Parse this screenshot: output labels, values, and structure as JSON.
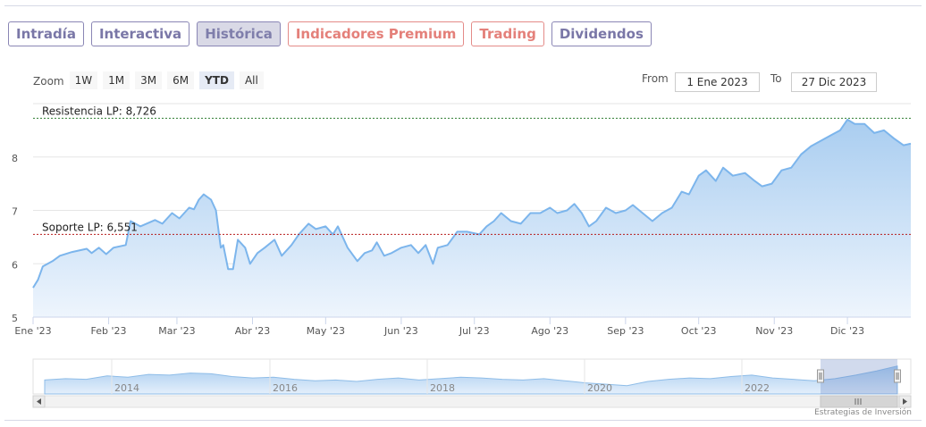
{
  "tabs": [
    {
      "label": "Intradía",
      "style": "normal"
    },
    {
      "label": "Interactiva",
      "style": "normal"
    },
    {
      "label": "Histórica",
      "style": "active"
    },
    {
      "label": "Indicadores Premium",
      "style": "premium"
    },
    {
      "label": "Trading",
      "style": "premium"
    },
    {
      "label": "Dividendos",
      "style": "normal"
    }
  ],
  "zoom": {
    "label": "Zoom",
    "buttons": [
      "1W",
      "1M",
      "3M",
      "6M",
      "YTD",
      "All"
    ],
    "selected": "YTD"
  },
  "range": {
    "from_label": "From",
    "from_value": "1 Ene 2023",
    "to_label": "To",
    "to_value": "27 Dic 2023"
  },
  "credit": "Estrategias de Inversión",
  "colors": {
    "line": "#7cb5ec",
    "fill_top": "#a9cdf0",
    "fill_bottom": "#eef5fd",
    "resistance": "#2e7d32",
    "support": "#b71c1c"
  },
  "chart_data": {
    "type": "area",
    "x_start": "2023-01-01",
    "x_end": "2023-12-27",
    "ylim": [
      5,
      9
    ],
    "y_ticks": [
      5,
      6,
      7,
      8
    ],
    "x_ticks": [
      {
        "date": "2023-01-01",
        "label": "Ene '23"
      },
      {
        "date": "2023-02-01",
        "label": "Feb '23"
      },
      {
        "date": "2023-03-01",
        "label": "Mar '23"
      },
      {
        "date": "2023-04-01",
        "label": "Abr '23"
      },
      {
        "date": "2023-05-01",
        "label": "May '23"
      },
      {
        "date": "2023-06-01",
        "label": "Jun '23"
      },
      {
        "date": "2023-07-01",
        "label": "Jul '23"
      },
      {
        "date": "2023-08-01",
        "label": "Ago '23"
      },
      {
        "date": "2023-09-01",
        "label": "Sep '23"
      },
      {
        "date": "2023-10-01",
        "label": "Oct '23"
      },
      {
        "date": "2023-11-01",
        "label": "Nov '23"
      },
      {
        "date": "2023-12-01",
        "label": "Dic '23"
      }
    ],
    "series": [
      {
        "points": [
          [
            "2023-01-01",
            5.55
          ],
          [
            "2023-01-03",
            5.7
          ],
          [
            "2023-01-05",
            5.95
          ],
          [
            "2023-01-09",
            6.05
          ],
          [
            "2023-01-12",
            6.15
          ],
          [
            "2023-01-17",
            6.22
          ],
          [
            "2023-01-23",
            6.28
          ],
          [
            "2023-01-25",
            6.2
          ],
          [
            "2023-01-28",
            6.3
          ],
          [
            "2023-01-31",
            6.18
          ],
          [
            "2023-02-03",
            6.3
          ],
          [
            "2023-02-08",
            6.35
          ],
          [
            "2023-02-10",
            6.8
          ],
          [
            "2023-02-14",
            6.7
          ],
          [
            "2023-02-20",
            6.82
          ],
          [
            "2023-02-23",
            6.75
          ],
          [
            "2023-02-27",
            6.95
          ],
          [
            "2023-03-02",
            6.85
          ],
          [
            "2023-03-06",
            7.05
          ],
          [
            "2023-03-08",
            7.02
          ],
          [
            "2023-03-10",
            7.2
          ],
          [
            "2023-03-12",
            7.3
          ],
          [
            "2023-03-15",
            7.2
          ],
          [
            "2023-03-17",
            7.0
          ],
          [
            "2023-03-19",
            6.3
          ],
          [
            "2023-03-20",
            6.35
          ],
          [
            "2023-03-22",
            5.9
          ],
          [
            "2023-03-24",
            5.9
          ],
          [
            "2023-03-26",
            6.45
          ],
          [
            "2023-03-29",
            6.3
          ],
          [
            "2023-03-31",
            6.0
          ],
          [
            "2023-04-03",
            6.2
          ],
          [
            "2023-04-06",
            6.3
          ],
          [
            "2023-04-10",
            6.45
          ],
          [
            "2023-04-13",
            6.15
          ],
          [
            "2023-04-17",
            6.35
          ],
          [
            "2023-04-20",
            6.55
          ],
          [
            "2023-04-24",
            6.75
          ],
          [
            "2023-04-27",
            6.65
          ],
          [
            "2023-05-01",
            6.7
          ],
          [
            "2023-05-04",
            6.55
          ],
          [
            "2023-05-06",
            6.7
          ],
          [
            "2023-05-10",
            6.3
          ],
          [
            "2023-05-14",
            6.05
          ],
          [
            "2023-05-17",
            6.2
          ],
          [
            "2023-05-20",
            6.25
          ],
          [
            "2023-05-22",
            6.4
          ],
          [
            "2023-05-25",
            6.15
          ],
          [
            "2023-05-28",
            6.2
          ],
          [
            "2023-06-01",
            6.3
          ],
          [
            "2023-06-05",
            6.35
          ],
          [
            "2023-06-08",
            6.2
          ],
          [
            "2023-06-11",
            6.35
          ],
          [
            "2023-06-14",
            6.0
          ],
          [
            "2023-06-16",
            6.3
          ],
          [
            "2023-06-20",
            6.35
          ],
          [
            "2023-06-24",
            6.6
          ],
          [
            "2023-06-28",
            6.6
          ],
          [
            "2023-07-03",
            6.55
          ],
          [
            "2023-07-06",
            6.7
          ],
          [
            "2023-07-09",
            6.8
          ],
          [
            "2023-07-12",
            6.95
          ],
          [
            "2023-07-16",
            6.8
          ],
          [
            "2023-07-20",
            6.75
          ],
          [
            "2023-07-24",
            6.95
          ],
          [
            "2023-07-28",
            6.95
          ],
          [
            "2023-08-01",
            7.05
          ],
          [
            "2023-08-04",
            6.95
          ],
          [
            "2023-08-08",
            7.0
          ],
          [
            "2023-08-11",
            7.12
          ],
          [
            "2023-08-14",
            6.95
          ],
          [
            "2023-08-17",
            6.7
          ],
          [
            "2023-08-20",
            6.8
          ],
          [
            "2023-08-24",
            7.05
          ],
          [
            "2023-08-28",
            6.95
          ],
          [
            "2023-09-01",
            7.0
          ],
          [
            "2023-09-04",
            7.1
          ],
          [
            "2023-09-08",
            6.95
          ],
          [
            "2023-09-12",
            6.8
          ],
          [
            "2023-09-16",
            6.95
          ],
          [
            "2023-09-20",
            7.05
          ],
          [
            "2023-09-24",
            7.35
          ],
          [
            "2023-09-27",
            7.3
          ],
          [
            "2023-10-01",
            7.65
          ],
          [
            "2023-10-04",
            7.75
          ],
          [
            "2023-10-08",
            7.55
          ],
          [
            "2023-10-11",
            7.8
          ],
          [
            "2023-10-15",
            7.65
          ],
          [
            "2023-10-20",
            7.7
          ],
          [
            "2023-10-24",
            7.55
          ],
          [
            "2023-10-27",
            7.45
          ],
          [
            "2023-10-31",
            7.5
          ],
          [
            "2023-11-04",
            7.75
          ],
          [
            "2023-11-08",
            7.8
          ],
          [
            "2023-11-12",
            8.05
          ],
          [
            "2023-11-16",
            8.2
          ],
          [
            "2023-11-20",
            8.3
          ],
          [
            "2023-11-24",
            8.4
          ],
          [
            "2023-11-28",
            8.5
          ],
          [
            "2023-12-01",
            8.7
          ],
          [
            "2023-12-04",
            8.62
          ],
          [
            "2023-12-08",
            8.62
          ],
          [
            "2023-12-12",
            8.45
          ],
          [
            "2023-12-16",
            8.5
          ],
          [
            "2023-12-20",
            8.35
          ],
          [
            "2023-12-24",
            8.22
          ],
          [
            "2023-12-27",
            8.25
          ]
        ]
      }
    ],
    "annotations": [
      {
        "label": "Resistencia LP: 8,726",
        "value": 8.726,
        "kind": "resistance"
      },
      {
        "label": "Soporte LP: 6,551",
        "value": 6.551,
        "kind": "support"
      }
    ],
    "navigator": {
      "year_labels": [
        "2014",
        "2016",
        "2018",
        "2020",
        "2022"
      ],
      "values": [
        6.2,
        6.4,
        6.3,
        6.8,
        6.6,
        7.0,
        6.9,
        7.2,
        7.1,
        6.7,
        6.5,
        6.6,
        6.3,
        6.1,
        6.2,
        6.0,
        6.3,
        6.5,
        6.2,
        6.4,
        6.6,
        6.5,
        6.3,
        6.2,
        6.4,
        6.1,
        5.8,
        5.6,
        5.4,
        6.0,
        6.3,
        6.5,
        6.4,
        6.7,
        6.9,
        6.5,
        6.3,
        6.1,
        6.4,
        6.9,
        7.5,
        8.2
      ]
    }
  }
}
